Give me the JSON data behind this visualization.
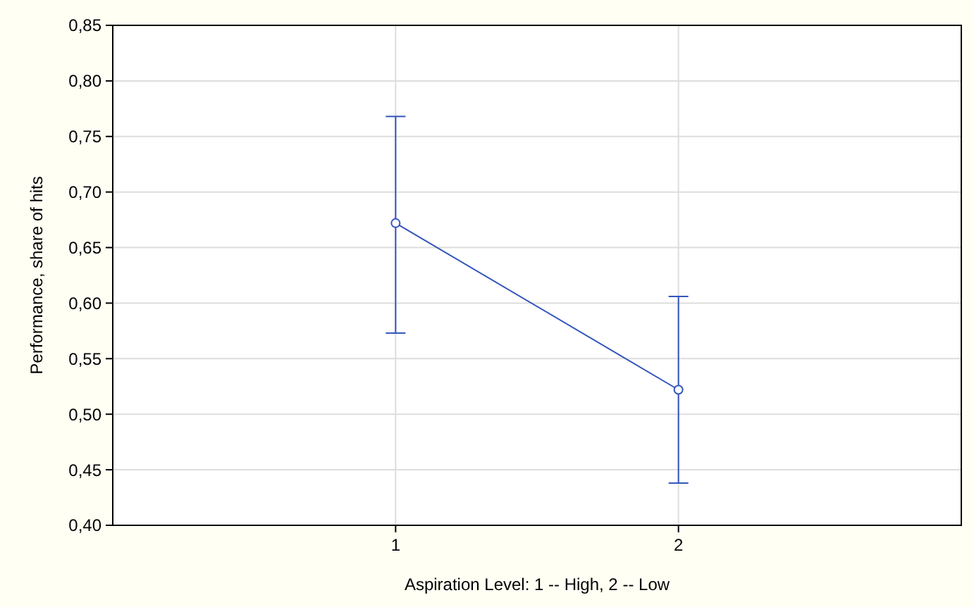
{
  "chart_data": {
    "type": "line",
    "xlabel": "Aspiration Level: 1 -- High, 2 -- Low",
    "ylabel": "Performance, share of hits",
    "categories": [
      "1",
      "2"
    ],
    "series": [
      {
        "color": "#3355bb",
        "values": [
          0.672,
          0.522
        ],
        "errors": [
          [
            0.573,
            0.768
          ],
          [
            0.438,
            0.606
          ]
        ]
      }
    ],
    "ylim": [
      0.4,
      0.85
    ],
    "yticks": [
      {
        "value": 0.4,
        "label": "0,40"
      },
      {
        "value": 0.45,
        "label": "0,45"
      },
      {
        "value": 0.5,
        "label": "0,50"
      },
      {
        "value": 0.55,
        "label": "0,55"
      },
      {
        "value": 0.6,
        "label": "0,60"
      },
      {
        "value": 0.65,
        "label": "0,65"
      },
      {
        "value": 0.7,
        "label": "0,70"
      },
      {
        "value": 0.75,
        "label": "0,75"
      },
      {
        "value": 0.8,
        "label": "0,80"
      },
      {
        "value": 0.85,
        "label": "0,85"
      }
    ],
    "grid": true,
    "marker": "circle",
    "line_style": "solid"
  }
}
